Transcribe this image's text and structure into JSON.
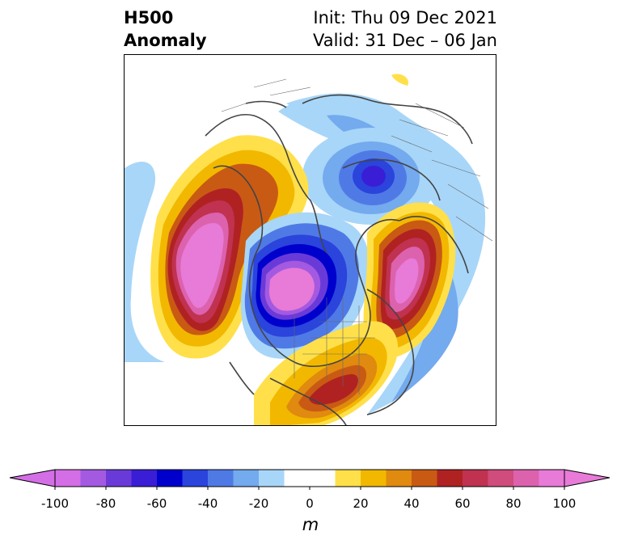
{
  "title": {
    "left_line1": "H500",
    "left_line2": "Anomaly",
    "right_line1": "Init: Thu 09 Dec 2021",
    "right_line2": "Valid: 31 Dec – 06 Jan"
  },
  "colorbar": {
    "unit": "m",
    "ticks": [
      "-100",
      "-80",
      "-60",
      "-40",
      "-20",
      "0",
      "20",
      "40",
      "60",
      "80",
      "100"
    ],
    "tick_values": [
      -100,
      -80,
      -60,
      -40,
      -20,
      0,
      20,
      40,
      60,
      80,
      100
    ],
    "bins": [
      {
        "from": -100,
        "to": -90,
        "color": "#d46ee6"
      },
      {
        "from": -90,
        "to": -80,
        "color": "#a35ae0"
      },
      {
        "from": -80,
        "to": -70,
        "color": "#6a3ad9"
      },
      {
        "from": -70,
        "to": -60,
        "color": "#3a1ed6"
      },
      {
        "from": -60,
        "to": -50,
        "color": "#0000cd"
      },
      {
        "from": -50,
        "to": -40,
        "color": "#2a44dc"
      },
      {
        "from": -40,
        "to": -30,
        "color": "#4f7ae6"
      },
      {
        "from": -30,
        "to": -20,
        "color": "#74aaee"
      },
      {
        "from": -20,
        "to": -10,
        "color": "#a8d6f8"
      },
      {
        "from": -10,
        "to": 10,
        "color": "#ffffff"
      },
      {
        "from": 10,
        "to": 20,
        "color": "#ffe04a"
      },
      {
        "from": 20,
        "to": 30,
        "color": "#f2b800"
      },
      {
        "from": 30,
        "to": 40,
        "color": "#e08a10"
      },
      {
        "from": 40,
        "to": 50,
        "color": "#c95a14"
      },
      {
        "from": 50,
        "to": 60,
        "color": "#b02222"
      },
      {
        "from": 60,
        "to": 70,
        "color": "#c03250"
      },
      {
        "from": 70,
        "to": 80,
        "color": "#cf4c7c"
      },
      {
        "from": 80,
        "to": 90,
        "color": "#dc62ae"
      },
      {
        "from": 90,
        "to": 100,
        "color": "#e87ad8"
      }
    ],
    "extend_low_color": "#d46ee6",
    "extend_high_color": "#e87ad8"
  },
  "map": {
    "projection": "north-polar-stereographic",
    "features": [
      {
        "name": "pacific-ridge",
        "sign": "positive",
        "peak": 100
      },
      {
        "name": "central-north-america-trough",
        "sign": "negative",
        "peak": -100
      },
      {
        "name": "north-atlantic-ridge",
        "sign": "positive",
        "peak": 100
      },
      {
        "name": "southeast-us-ridge",
        "sign": "positive",
        "peak": 60
      },
      {
        "name": "siberian-trough",
        "sign": "negative",
        "peak": -70
      },
      {
        "name": "eurasia-negative-band",
        "sign": "negative",
        "peak": -20
      }
    ]
  }
}
